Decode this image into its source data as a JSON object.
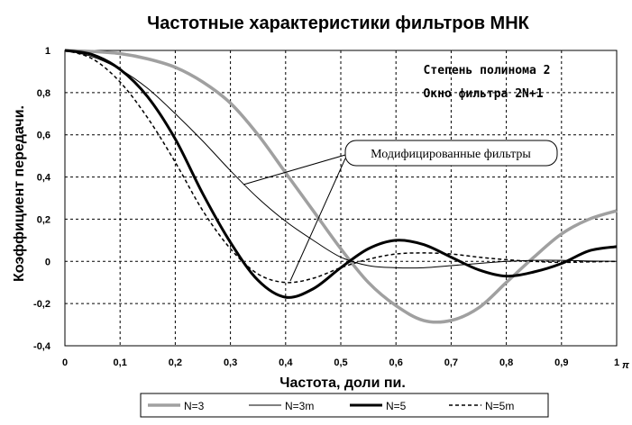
{
  "chart_data": {
    "type": "line",
    "title": "Частотные характеристики фильтров МНК",
    "xlabel": "Частота, доли пи.",
    "ylabel": "Коэффициент передачи.",
    "xlim": [
      0,
      1
    ],
    "ylim": [
      -0.4,
      1
    ],
    "x_ticks": [
      "0",
      "0,1",
      "0,2",
      "0,3",
      "0,4",
      "0,5",
      "0,6",
      "0,7",
      "0,8",
      "0,9",
      "1"
    ],
    "x_tick_values": [
      0,
      0.1,
      0.2,
      0.3,
      0.4,
      0.5,
      0.6,
      0.7,
      0.8,
      0.9,
      1.0
    ],
    "y_ticks": [
      "1",
      "0,8",
      "0,6",
      "0,4",
      "0,2",
      "0",
      "-0,2",
      "-0,4"
    ],
    "y_tick_values": [
      1,
      0.8,
      0.6,
      0.4,
      0.2,
      0,
      -0.2,
      -0.4
    ],
    "pi_symbol": "π",
    "grid": true,
    "legend_position": "bottom",
    "annotations": {
      "degree": "Степень полинома 2",
      "window": "Окно фильтра 2N+1",
      "callout": "Модифицированные фильтры"
    },
    "x": [
      0,
      0.05,
      0.1,
      0.15,
      0.2,
      0.25,
      0.3,
      0.35,
      0.4,
      0.45,
      0.5,
      0.55,
      0.6,
      0.65,
      0.7,
      0.75,
      0.8,
      0.85,
      0.9,
      0.95,
      1.0
    ],
    "series": [
      {
        "name": "N=3",
        "color": "#a0a0a0",
        "style": "gray-thick",
        "values": [
          1.0,
          0.995,
          0.985,
          0.96,
          0.92,
          0.85,
          0.75,
          0.6,
          0.42,
          0.24,
          0.06,
          -0.1,
          -0.21,
          -0.28,
          -0.28,
          -0.22,
          -0.1,
          0.02,
          0.13,
          0.2,
          0.24
        ]
      },
      {
        "name": "N=3m",
        "color": "#000000",
        "style": "thin",
        "values": [
          1.0,
          0.97,
          0.91,
          0.82,
          0.7,
          0.57,
          0.43,
          0.3,
          0.19,
          0.1,
          0.02,
          -0.02,
          -0.03,
          -0.03,
          -0.02,
          -0.01,
          0.0,
          0.005,
          0.005,
          0.002,
          0.0
        ]
      },
      {
        "name": "N=5",
        "color": "#000000",
        "style": "thick",
        "values": [
          1.0,
          0.98,
          0.91,
          0.78,
          0.58,
          0.32,
          0.09,
          -0.09,
          -0.17,
          -0.13,
          -0.03,
          0.06,
          0.1,
          0.08,
          0.02,
          -0.04,
          -0.07,
          -0.05,
          -0.01,
          0.05,
          0.07
        ]
      },
      {
        "name": "N=5m",
        "color": "#000000",
        "style": "dashed",
        "values": [
          1.0,
          0.96,
          0.85,
          0.68,
          0.47,
          0.24,
          0.06,
          -0.06,
          -0.1,
          -0.08,
          -0.03,
          0.01,
          0.035,
          0.04,
          0.035,
          0.02,
          0.008,
          0.0,
          -0.005,
          -0.002,
          0.0
        ]
      }
    ]
  }
}
